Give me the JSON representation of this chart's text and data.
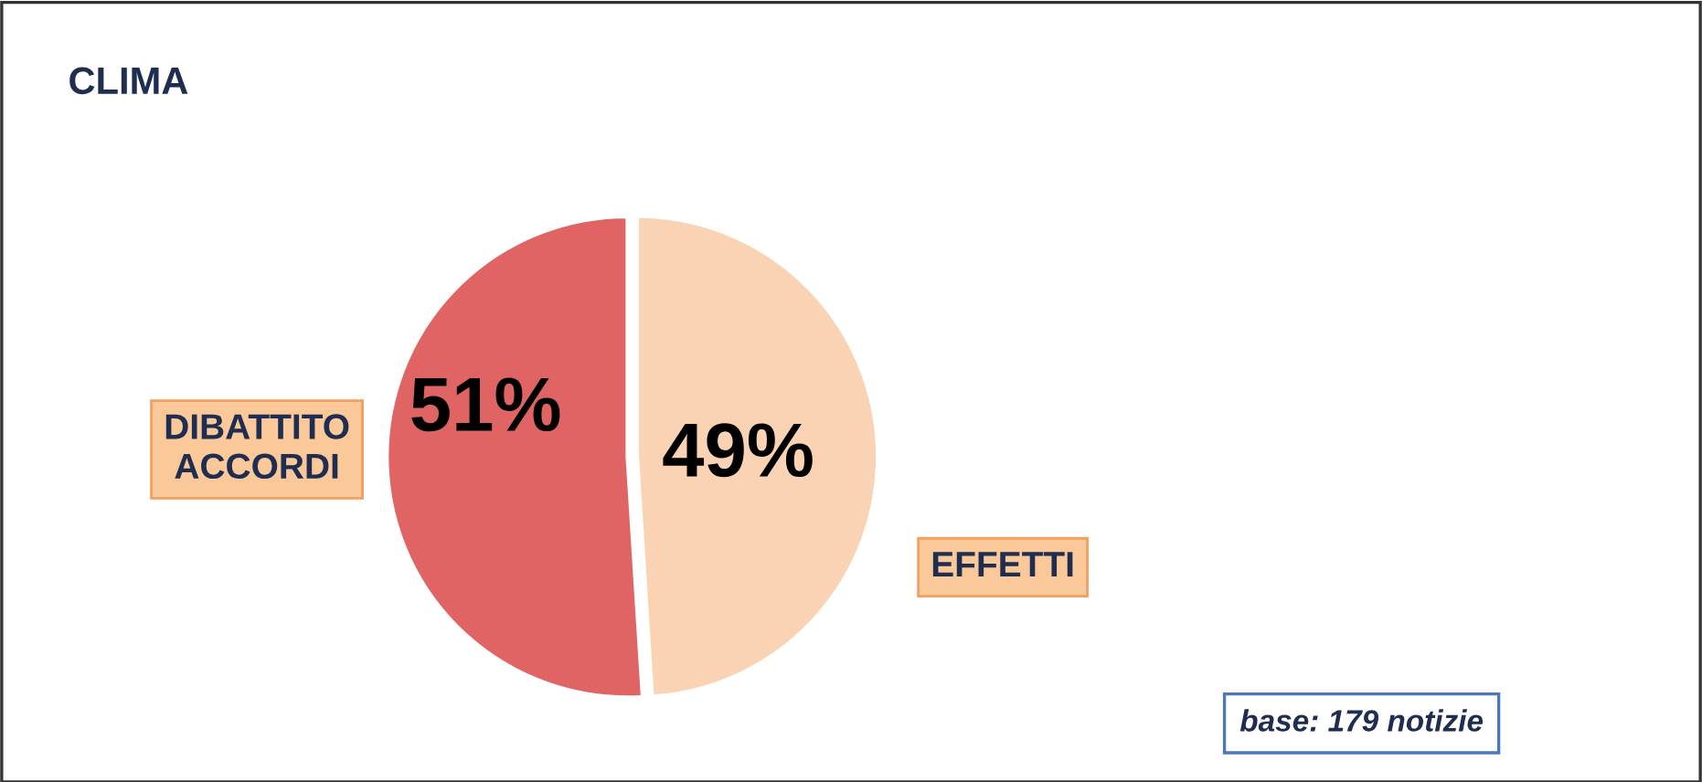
{
  "chart_data": {
    "type": "pie",
    "title": "CLIMA",
    "categories": [
      "EFFETTI",
      "DIBATTITO\nACCORDI"
    ],
    "values": [
      49,
      51
    ],
    "colors": [
      "#fad3b4",
      "#e06464"
    ],
    "value_labels": [
      "49%",
      "51%"
    ],
    "annotations": [
      "base: 179 notizie"
    ]
  }
}
